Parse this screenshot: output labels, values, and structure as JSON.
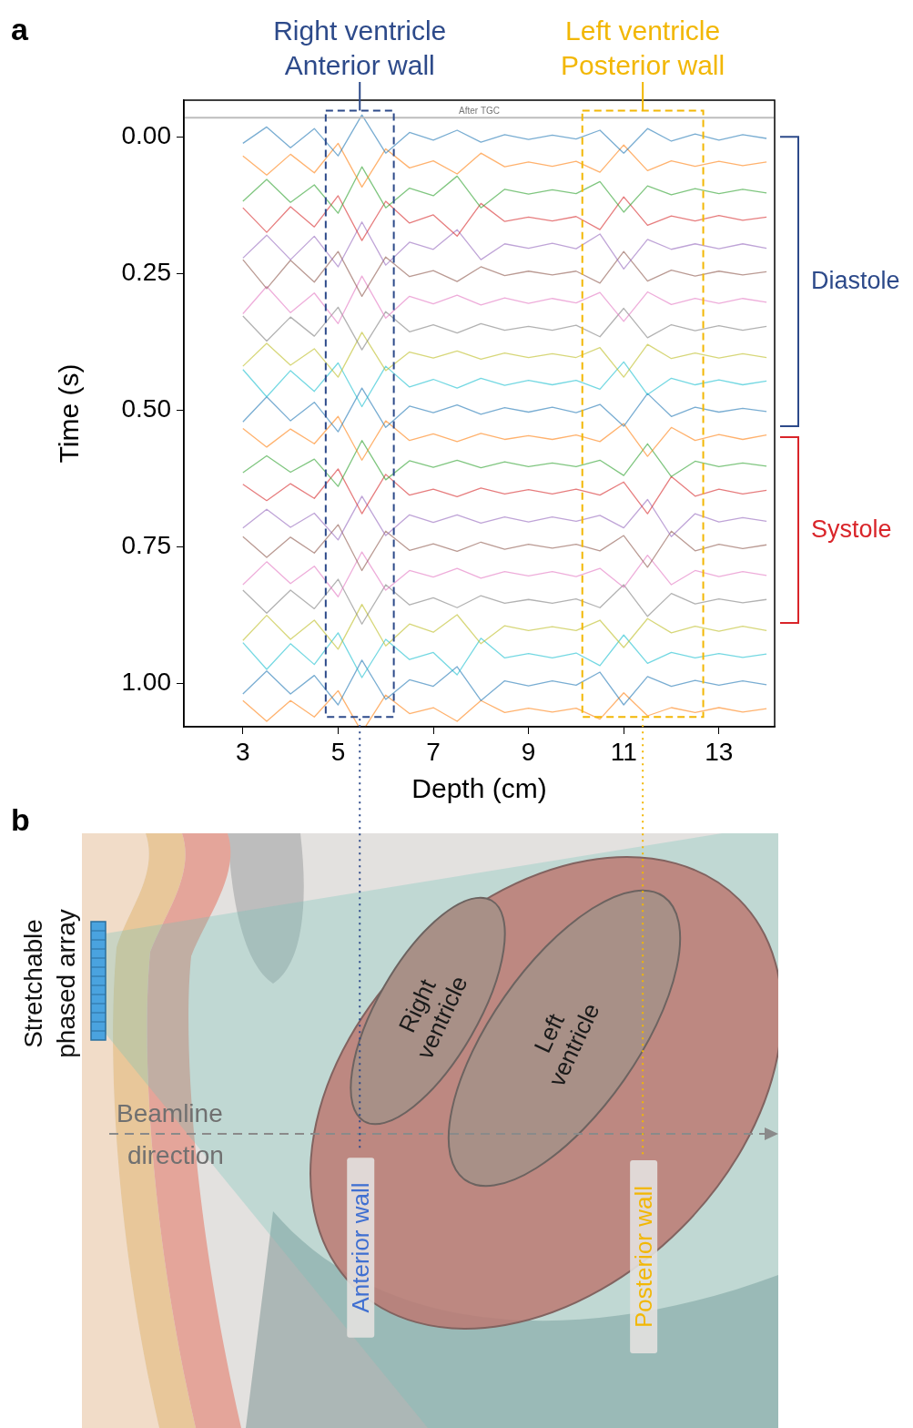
{
  "chart_data": {
    "type": "line",
    "panel": "a",
    "x_label": "Depth (cm)",
    "y_label": "Time (s)",
    "xlim": [
      1.76,
      14.17
    ],
    "xticks": [
      3,
      5,
      7,
      9,
      11,
      13
    ],
    "ylim": [
      -0.067,
      1.08
    ],
    "yticks": [
      {
        "value": 0,
        "label": "0.00"
      },
      0.25,
      {
        "value": 0.5,
        "label": "0.50"
      },
      0.75,
      {
        "value": 1,
        "label": "1.00"
      }
    ],
    "grid": false,
    "x": [
      3,
      3.5,
      4,
      4.5,
      5,
      5.5,
      6,
      6.5,
      7,
      7.5,
      8,
      8.5,
      9,
      9.5,
      10,
      10.5,
      11,
      11.5,
      12,
      12.5,
      13,
      13.5,
      14
    ],
    "series": [
      {
        "time": 0,
        "color": "#1f77b4",
        "values": [
          0.012,
          -0.018,
          0.02,
          -0.015,
          0.035,
          -0.04,
          0.03,
          -0.008,
          0.006,
          -0.012,
          0.01,
          -0.004,
          0.005,
          -0.003,
          0.004,
          -0.012,
          0.03,
          -0.015,
          0.008,
          -0.005,
          0.006,
          -0.004,
          0.003
        ]
      },
      {
        "time": 0.05,
        "color": "#ff7f0e",
        "values": [
          -0.015,
          0.02,
          -0.018,
          0.016,
          -0.038,
          0.042,
          -0.028,
          0.007,
          -0.006,
          0.018,
          -0.02,
          0.005,
          -0.004,
          0.004,
          -0.005,
          0.015,
          -0.035,
          0.012,
          -0.006,
          0.004,
          -0.005,
          0.003,
          -0.004
        ]
      },
      {
        "time": 0.1,
        "color": "#2ca02c",
        "values": [
          0.018,
          -0.022,
          0.02,
          -0.012,
          0.04,
          -0.045,
          0.03,
          -0.006,
          0.008,
          -0.028,
          0.03,
          -0.004,
          0.005,
          -0.003,
          0.004,
          -0.018,
          0.038,
          -0.01,
          0.006,
          -0.005,
          0.004,
          -0.004,
          0.003
        ]
      },
      {
        "time": 0.15,
        "color": "#d62728",
        "values": [
          -0.02,
          0.025,
          -0.022,
          0.015,
          -0.042,
          0.04,
          -0.032,
          0.008,
          -0.007,
          0.032,
          -0.028,
          0.005,
          -0.003,
          0.004,
          -0.004,
          0.02,
          -0.04,
          0.012,
          -0.005,
          0.004,
          -0.006,
          0.003,
          -0.003
        ]
      },
      {
        "time": 0.2,
        "color": "#9467bd",
        "values": [
          0.022,
          -0.02,
          0.025,
          -0.018,
          0.038,
          -0.044,
          0.035,
          -0.007,
          0.006,
          -0.03,
          0.025,
          -0.004,
          0.004,
          -0.005,
          0.005,
          -0.022,
          0.042,
          -0.012,
          0.006,
          -0.004,
          0.005,
          -0.004,
          0.004
        ]
      },
      {
        "time": 0.25,
        "color": "#8c564b",
        "values": [
          -0.025,
          0.028,
          -0.024,
          0.016,
          -0.04,
          0.042,
          -0.03,
          0.006,
          -0.005,
          0.015,
          -0.012,
          0.004,
          -0.004,
          0.003,
          -0.004,
          0.018,
          -0.04,
          0.014,
          -0.006,
          0.005,
          -0.004,
          0.003,
          -0.003
        ]
      },
      {
        "time": 0.3,
        "color": "#e377c2",
        "values": [
          0.024,
          -0.026,
          0.022,
          -0.014,
          0.042,
          -0.045,
          0.032,
          -0.008,
          0.006,
          -0.01,
          0.008,
          -0.005,
          0.005,
          -0.004,
          0.004,
          -0.015,
          0.038,
          -0.016,
          0.007,
          -0.004,
          0.005,
          -0.004,
          0.003
        ]
      },
      {
        "time": 0.35,
        "color": "#7f7f7f",
        "values": [
          -0.022,
          0.024,
          -0.02,
          0.015,
          -0.038,
          0.04,
          -0.03,
          0.007,
          -0.006,
          0.009,
          -0.008,
          0.004,
          -0.003,
          0.004,
          -0.005,
          0.016,
          -0.036,
          0.018,
          -0.006,
          0.005,
          -0.004,
          0.004,
          -0.003
        ]
      },
      {
        "time": 0.4,
        "color": "#bcbd22",
        "values": [
          0.02,
          -0.022,
          0.018,
          -0.012,
          0.04,
          -0.042,
          0.028,
          -0.006,
          0.005,
          -0.008,
          0.007,
          -0.004,
          0.004,
          -0.003,
          0.004,
          -0.014,
          0.04,
          -0.02,
          0.006,
          -0.004,
          0.005,
          -0.003,
          0.004
        ]
      },
      {
        "time": 0.45,
        "color": "#17becf",
        "values": [
          -0.024,
          0.026,
          -0.022,
          0.016,
          -0.036,
          0.044,
          -0.03,
          0.008,
          -0.006,
          0.01,
          -0.008,
          0.005,
          -0.004,
          0.004,
          -0.004,
          0.012,
          -0.038,
          0.022,
          -0.008,
          0.004,
          -0.005,
          0.004,
          -0.003
        ]
      },
      {
        "time": 0.5,
        "color": "#1f77b4",
        "values": [
          0.022,
          -0.024,
          0.02,
          -0.014,
          0.04,
          -0.04,
          0.032,
          -0.007,
          0.005,
          -0.009,
          0.008,
          -0.004,
          0.004,
          -0.005,
          0.005,
          -0.01,
          0.03,
          -0.03,
          0.012,
          -0.005,
          0.004,
          -0.003,
          0.003
        ]
      },
      {
        "time": 0.55,
        "color": "#ff7f0e",
        "values": [
          -0.016,
          0.018,
          -0.015,
          0.012,
          -0.038,
          0.042,
          -0.03,
          0.006,
          -0.006,
          0.008,
          -0.007,
          0.004,
          -0.003,
          0.004,
          -0.004,
          0.008,
          -0.025,
          0.035,
          -0.018,
          0.006,
          -0.005,
          0.004,
          -0.004
        ]
      },
      {
        "time": 0.6,
        "color": "#2ca02c",
        "values": [
          0.015,
          -0.016,
          0.014,
          -0.01,
          0.04,
          -0.044,
          0.028,
          -0.007,
          0.005,
          -0.008,
          0.006,
          -0.005,
          0.004,
          -0.003,
          0.004,
          -0.008,
          0.02,
          -0.038,
          0.022,
          -0.006,
          0.004,
          -0.003,
          0.003
        ]
      },
      {
        "time": 0.65,
        "color": "#d62728",
        "values": [
          -0.014,
          0.016,
          -0.015,
          0.012,
          -0.042,
          0.04,
          -0.032,
          0.006,
          -0.005,
          0.009,
          -0.007,
          0.004,
          -0.004,
          0.004,
          -0.005,
          0.006,
          -0.018,
          0.04,
          -0.028,
          0.008,
          -0.005,
          0.004,
          -0.003
        ]
      },
      {
        "time": 0.7,
        "color": "#9467bd",
        "values": [
          0.016,
          -0.018,
          0.015,
          -0.011,
          0.038,
          -0.042,
          0.03,
          -0.008,
          0.006,
          -0.008,
          0.007,
          -0.004,
          0.005,
          -0.004,
          0.004,
          -0.007,
          0.016,
          -0.036,
          0.032,
          -0.01,
          0.005,
          -0.003,
          0.004
        ]
      },
      {
        "time": 0.75,
        "color": "#8c564b",
        "values": [
          -0.018,
          0.02,
          -0.017,
          0.012,
          -0.04,
          0.044,
          -0.028,
          0.007,
          -0.005,
          0.009,
          -0.008,
          0.005,
          -0.004,
          0.003,
          -0.004,
          0.008,
          -0.02,
          0.038,
          -0.028,
          0.008,
          -0.004,
          0.004,
          -0.003
        ]
      },
      {
        "time": 0.8,
        "color": "#e377c2",
        "values": [
          0.02,
          -0.022,
          0.018,
          -0.014,
          0.042,
          -0.04,
          0.03,
          -0.006,
          0.006,
          -0.01,
          0.008,
          -0.004,
          0.004,
          -0.004,
          0.005,
          -0.01,
          0.025,
          -0.034,
          0.02,
          -0.006,
          0.005,
          -0.004,
          0.003
        ]
      },
      {
        "time": 0.85,
        "color": "#7f7f7f",
        "values": [
          -0.02,
          0.022,
          -0.02,
          0.014,
          -0.04,
          0.042,
          -0.03,
          0.007,
          -0.006,
          0.012,
          -0.01,
          0.004,
          -0.003,
          0.004,
          -0.004,
          0.012,
          -0.03,
          0.028,
          -0.014,
          0.005,
          -0.004,
          0.003,
          -0.003
        ]
      },
      {
        "time": 0.9,
        "color": "#bcbd22",
        "values": [
          0.022,
          -0.024,
          0.02,
          -0.015,
          0.038,
          -0.044,
          0.032,
          -0.008,
          0.007,
          -0.025,
          0.028,
          -0.005,
          0.004,
          -0.003,
          0.004,
          -0.015,
          0.035,
          -0.018,
          0.008,
          -0.004,
          0.005,
          -0.004,
          0.004
        ]
      },
      {
        "time": 0.95,
        "color": "#17becf",
        "values": [
          -0.024,
          0.025,
          -0.022,
          0.016,
          -0.042,
          0.04,
          -0.03,
          0.007,
          -0.006,
          0.035,
          -0.032,
          0.004,
          -0.004,
          0.004,
          -0.005,
          0.018,
          -0.038,
          0.014,
          -0.006,
          0.004,
          -0.004,
          0.003,
          -0.003
        ]
      },
      {
        "time": 1,
        "color": "#1f77b4",
        "values": [
          0.02,
          -0.022,
          0.02,
          -0.014,
          0.04,
          -0.042,
          0.03,
          -0.006,
          0.006,
          -0.03,
          0.032,
          -0.004,
          0.005,
          -0.004,
          0.004,
          -0.02,
          0.04,
          -0.012,
          0.006,
          -0.005,
          0.004,
          -0.004,
          0.003
        ]
      },
      {
        "time": 1.05,
        "color": "#ff7f0e",
        "values": [
          -0.018,
          0.02,
          -0.018,
          0.012,
          -0.036,
          0.04,
          -0.028,
          0.006,
          -0.005,
          0.02,
          -0.018,
          0.004,
          -0.004,
          0.003,
          -0.004,
          0.016,
          -0.032,
          0.01,
          -0.005,
          0.004,
          -0.005,
          0.003,
          -0.003
        ]
      }
    ],
    "reference_line": {
      "y": -0.035,
      "label": "After TGC",
      "color": "#bdbdbd"
    },
    "regions": [
      {
        "lines": [
          "Right ventricle",
          "Anterior wall"
        ],
        "x": [
          4.74,
          6.17
        ],
        "y": [
          -0.048,
          1.062
        ],
        "color": "#2d4a8a"
      },
      {
        "lines": [
          "Left ventricle",
          "Posterior wall"
        ],
        "x": [
          10.13,
          12.67
        ],
        "y": [
          -0.048,
          1.062
        ],
        "color": "#f2b705"
      }
    ],
    "phases": [
      {
        "label": "Diastole",
        "start": 0,
        "end": 0.53,
        "color": "#2d4a8a"
      },
      {
        "label": "Systole",
        "start": 0.55,
        "end": 0.89,
        "color": "#d9252a"
      }
    ]
  },
  "diagram": {
    "panel": "b",
    "array_label": [
      "Stretchable",
      "phased array"
    ],
    "beam_label": [
      "Beamline",
      "direction"
    ],
    "chambers": [
      {
        "lines": [
          "Right",
          "ventricle"
        ]
      },
      {
        "lines": [
          "Left",
          "ventricle"
        ]
      }
    ],
    "wall_labels": [
      {
        "text": "Anterior wall",
        "color": "#3f6fd1"
      },
      {
        "text": "Posterior wall",
        "color": "#f2b705"
      }
    ]
  }
}
